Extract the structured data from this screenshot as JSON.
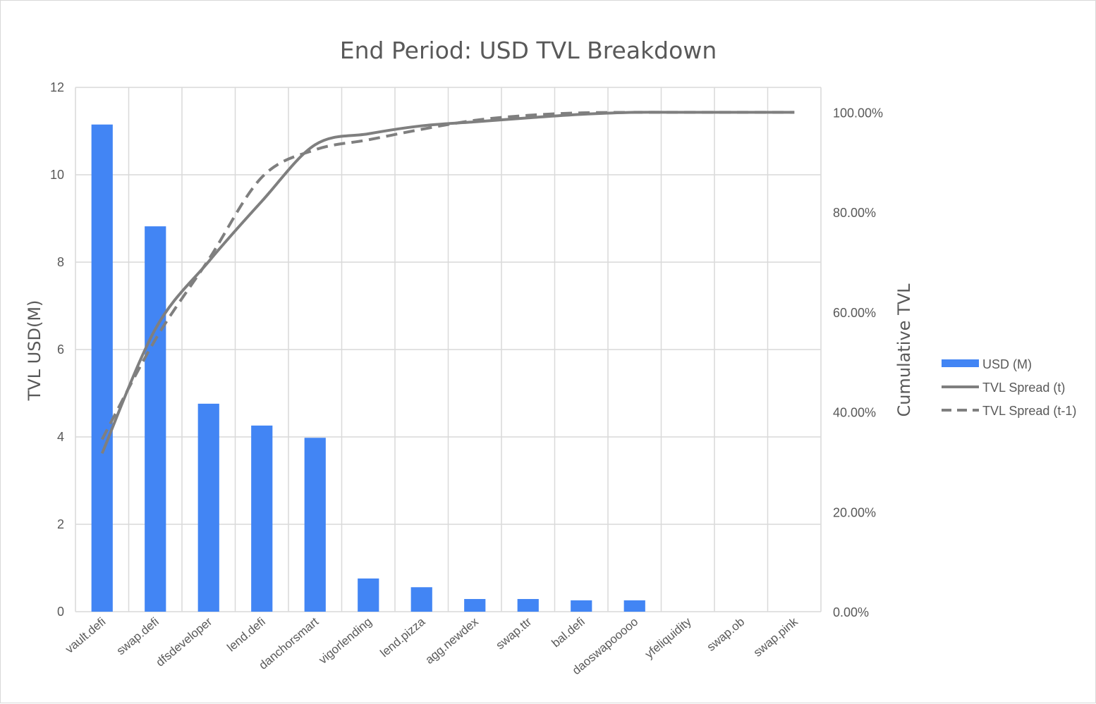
{
  "chart_data": {
    "type": "bar",
    "title": "End Period: USD  TVL Breakdown",
    "ylabel": "TVL USD(M)",
    "y2label": "Cumulative TVL",
    "ylim": [
      0,
      12
    ],
    "yticks": [
      "0",
      "2",
      "4",
      "6",
      "8",
      "10",
      "12"
    ],
    "y2lim": [
      0,
      1.05
    ],
    "y2ticks": [
      "0.00%",
      "20.00%",
      "40.00%",
      "60.00%",
      "80.00%",
      "100.00%"
    ],
    "grid": true,
    "legend_position": "right",
    "categories": [
      "vault.defi",
      "swap.defi",
      "dfsdeveloper",
      "lend.defi",
      "danchorsmart",
      "vigorlending",
      "lend.pizza",
      "agg.newdex",
      "swap.ttr",
      "bal.defi",
      "daoswapooooo",
      "yfeliquidity",
      "swap.ob",
      "swap.pink"
    ],
    "series": [
      {
        "name": "USD (M)",
        "type": "bar",
        "axis": "left",
        "color": "#4285f4",
        "values": [
          11.15,
          8.82,
          4.76,
          4.26,
          3.98,
          0.76,
          0.56,
          0.29,
          0.29,
          0.26,
          0.26,
          0.0,
          0.0,
          0.0
        ]
      },
      {
        "name": "TVL Spread (t)",
        "type": "line",
        "style": "solid",
        "axis": "right",
        "color": "#7f7f7f",
        "values": [
          0.317,
          0.566,
          0.701,
          0.822,
          0.935,
          0.957,
          0.973,
          0.981,
          0.989,
          0.996,
          1.0,
          1.0,
          1.0,
          1.0
        ]
      },
      {
        "name": "TVL Spread (t-1)",
        "type": "line",
        "style": "dashed",
        "axis": "right",
        "color": "#7f7f7f",
        "values": [
          0.345,
          0.545,
          0.705,
          0.87,
          0.925,
          0.945,
          0.966,
          0.984,
          0.994,
          0.999,
          1.0,
          1.0,
          1.0,
          1.0
        ]
      }
    ]
  }
}
